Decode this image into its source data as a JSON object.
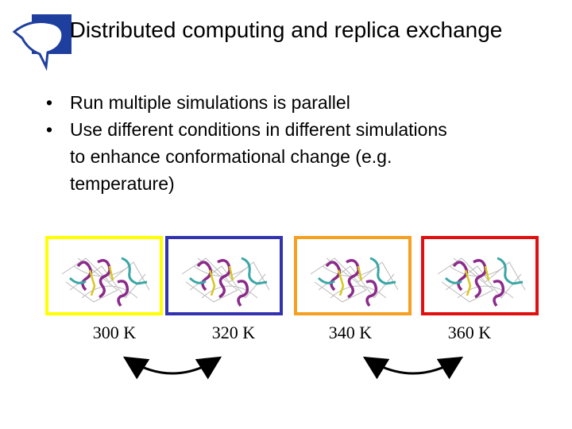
{
  "header": {
    "title": "Distributed computing and replica exchange"
  },
  "bullets": [
    "Run multiple simulations is parallel",
    "Use different conditions in different simulations to enhance conformational change (e.g. temperature)"
  ],
  "panels": [
    {
      "label": "300 K"
    },
    {
      "label": "320 K"
    },
    {
      "label": "340 K"
    },
    {
      "label": "360 K"
    }
  ]
}
